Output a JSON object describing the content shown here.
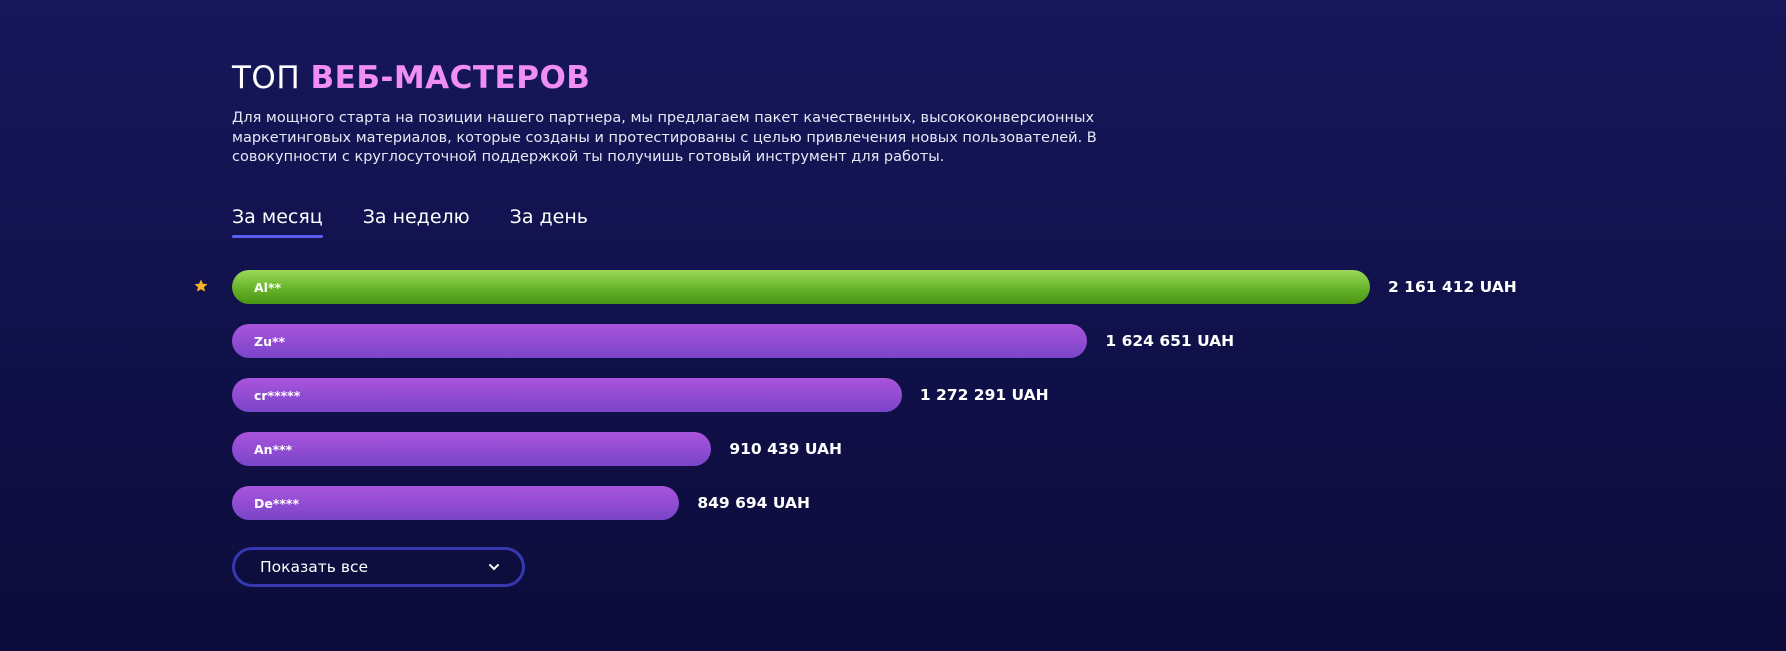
{
  "header": {
    "title_plain": "ТОП",
    "title_accent": "ВЕБ-МАСТЕРОВ",
    "description": "Для мощного старта на позиции нашего партнера, мы предлагаем пакет качественных, высококонверсионных маркетинговых материалов, которые созданы и протестированы с целью привлечения новых пользователей. В совокупности с круглосуточной поддержкой ты получишь готовый инструмент для работы."
  },
  "tabs": [
    "За месяц",
    "За неделю",
    "За день"
  ],
  "active_tab": 0,
  "leaderboard": {
    "names": [
      "Al**",
      "Zu**",
      "cr*****",
      "An***",
      "De****"
    ],
    "values": [
      2161412,
      1624651,
      1272291,
      910439,
      849694
    ],
    "value_labels": [
      "2 161 412 UAH",
      "1 624 651 UAH",
      "1 272 291 UAH",
      "910 439 UAH",
      "849 694 UAH"
    ]
  },
  "button": "Показать все"
}
